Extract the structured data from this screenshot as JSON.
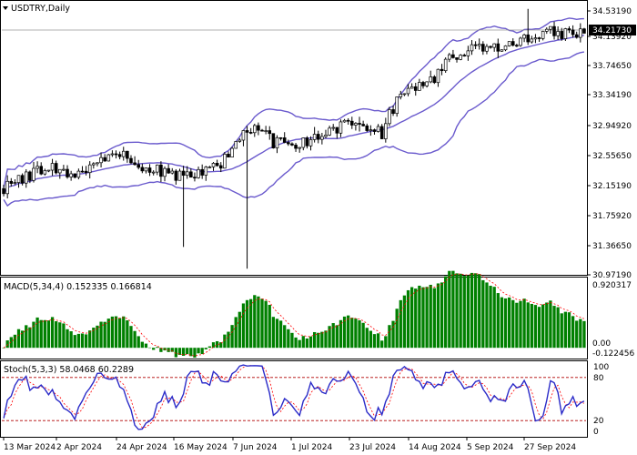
{
  "chart_data": [
    {
      "type": "candlestick",
      "title": "USDTRY,Daily",
      "symbol": "USDTRY",
      "timeframe": "Daily",
      "current_price": 34.2173,
      "current_price_label": "34.21730",
      "ylim": [
        30.972,
        34.57
      ],
      "y_ticks": [
        "34.53190",
        "34.13920",
        "33.74650",
        "33.34190",
        "32.94920",
        "32.55650",
        "32.15190",
        "31.75920",
        "31.36650",
        "30.97190"
      ],
      "x_ticks": [
        "13 Mar 2024",
        "2 Apr 2024",
        "24 Apr 2024",
        "16 May 2024",
        "7 Jun 2024",
        "1 Jul 2024",
        "23 Jul 2024",
        "14 Aug 2024",
        "5 Sep 2024",
        "27 Sep 2024"
      ],
      "bollinger_bands": true,
      "colors": {
        "up": "#ffffff",
        "down": "#000000",
        "bands": "#6a5acd"
      }
    },
    {
      "type": "bar",
      "title": "MACD(5,34,4) 0.152335 0.166814",
      "ylim": [
        -0.12,
        0.92
      ],
      "y_ticks": [
        "0.920317",
        "0.00",
        "-0.122456"
      ],
      "colors": {
        "histogram": "#008000",
        "signal": "#ff0000"
      }
    },
    {
      "type": "line",
      "title": "Stoch(5,3,3) 58.0468 60.2289",
      "ylim": [
        0,
        100
      ],
      "y_ticks": [
        "100",
        "80",
        "20",
        "0"
      ],
      "levels": [
        80,
        20
      ],
      "colors": {
        "main": "#2a2ac8",
        "signal": "#ff0000",
        "levels": "#b00000"
      }
    }
  ],
  "header": {
    "main_title": "USDTRY,Daily",
    "macd_title": "MACD(5,34,4) 0.152335 0.166814",
    "stoch_title": "Stoch(5,3,3) 58.0468 60.2289"
  }
}
